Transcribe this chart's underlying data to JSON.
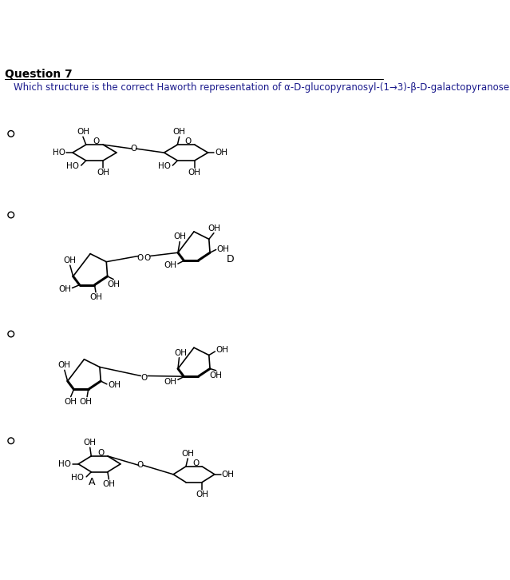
{
  "title": "Question 7",
  "question": "Which structure is the correct Haworth representation of α-D-glucopyranosyl-(1→3)-β-D-galactopyranose?",
  "bg_color": "#ffffff",
  "text_color": "#000000",
  "question_color": "#1a1a8c",
  "label_D": "D",
  "label_A": "A"
}
